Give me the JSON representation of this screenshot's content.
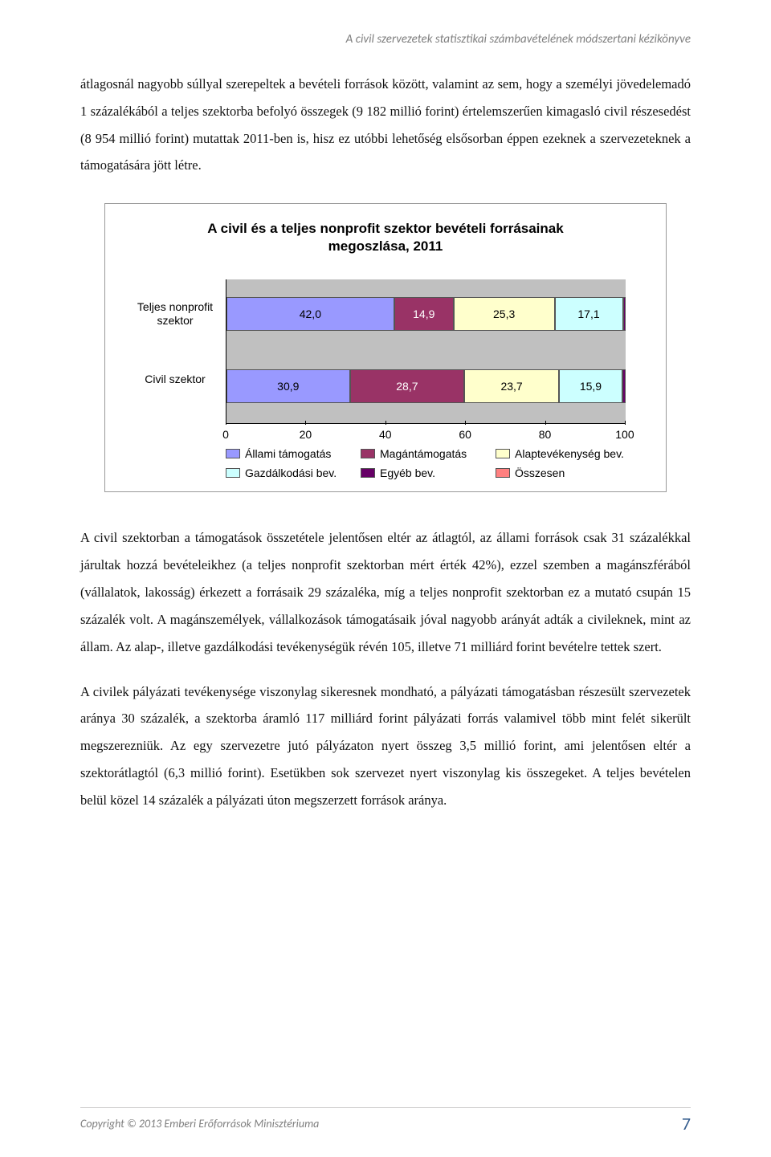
{
  "header": {
    "running_title": "A civil szervezetek statisztikai számbavételének módszertani kézikönyve"
  },
  "paragraphs": {
    "p1": "átlagosnál nagyobb súllyal szerepeltek a bevételi források között, valamint az sem, hogy a személyi jövedelemadó 1 százalékából a teljes szektorba befolyó összegek (9 182 millió forint) értelemszerűen kimagasló civil részesedést (8 954 millió forint) mutattak 2011-ben is, hisz ez utóbbi lehetőség elsősorban éppen ezeknek a szervezeteknek a támogatására jött létre.",
    "p2": "A civil szektorban a támogatások összetétele jelentősen eltér az átlagtól, az állami források csak 31 százalékkal járultak hozzá bevételeikhez (a teljes nonprofit szektorban mért érték 42%), ezzel szemben a magánszférából (vállalatok, lakosság) érkezett a forrásaik 29 százaléka, míg a teljes nonprofit szektorban ez a mutató csupán 15 százalék volt. A magánszemélyek, vállalkozások támogatásaik jóval nagyobb arányát adták a civileknek, mint az állam. Az alap-, illetve gazdálkodási tevékenységük révén 105, illetve 71 milliárd forint bevételre tettek szert.",
    "p3": "A civilek pályázati tevékenysége viszonylag sikeresnek mondható, a pályázati támogatásban részesült szervezetek aránya 30 százalék, a szektorba áramló 117 milliárd forint pályázati forrás valamivel több mint felét sikerült megszerezniük. Az egy szervezetre jutó pályázaton nyert összeg 3,5 millió forint, ami jelentősen eltér a szektorátlagtól (6,3 millió forint). Esetükben sok szervezet nyert viszonylag kis összegeket. A teljes bevételen belül közel 14 százalék a pályázati úton megszerzett források aránya."
  },
  "chart": {
    "type": "stacked-bar-horizontal",
    "title": "A civil és a teljes nonprofit szektor bevételi forrásainak megoszlása, 2011",
    "background_color": "#c0c0c0",
    "grid_color": "#e0e0e0",
    "xlim": [
      0,
      100
    ],
    "xtick_step": 20,
    "xticks": [
      "0",
      "20",
      "40",
      "60",
      "80",
      "100"
    ],
    "categories": [
      {
        "label": "Teljes nonprofit szektor",
        "values": [
          42.0,
          14.9,
          25.3,
          17.1,
          0.7
        ],
        "display": [
          "42,0",
          "14,9",
          "25,3",
          "17,1",
          ""
        ]
      },
      {
        "label": "Civil szektor",
        "values": [
          30.9,
          28.7,
          23.7,
          15.9,
          0.8
        ],
        "display": [
          "30,9",
          "28,7",
          "23,7",
          "15,9",
          ""
        ]
      }
    ],
    "series": [
      {
        "name": "Állami támogatás",
        "color": "#9999ff"
      },
      {
        "name": "Magántámogatás",
        "color": "#993366"
      },
      {
        "name": "Alaptevékenység bev.",
        "color": "#ffffcc"
      },
      {
        "name": "Gazdálkodási bev.",
        "color": "#ccffff"
      },
      {
        "name": "Egyéb bev.",
        "color": "#660066"
      },
      {
        "name": "Összesen",
        "color": "#ff8080"
      }
    ]
  },
  "footer": {
    "copyright": "Copyright © 2013 Emberi Erőforrások Minisztériuma",
    "page_number": "7"
  }
}
